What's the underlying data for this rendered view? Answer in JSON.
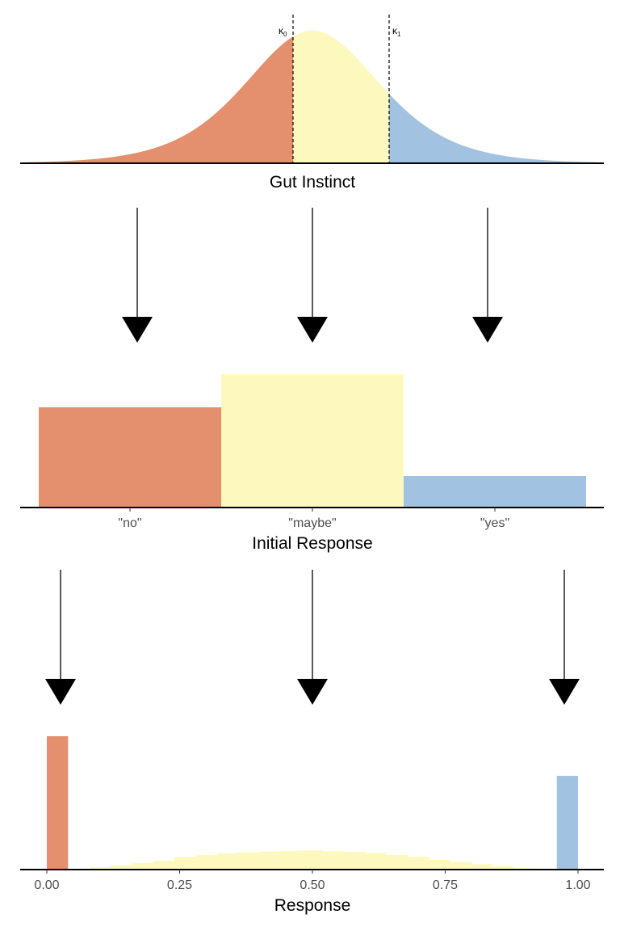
{
  "colors": {
    "no": "#E48F6D",
    "maybe": "#FDF8BD",
    "yes": "#A2C2E2",
    "axis": "#000000",
    "tick_text": "#4d4d4d"
  },
  "gut_instinct": {
    "xlabel": "Gut Instinct",
    "cutpoints": [
      {
        "name": "κ",
        "sub": "0"
      },
      {
        "name": "κ",
        "sub": "1"
      }
    ]
  },
  "initial_response": {
    "xlabel": "Initial Response",
    "categories": [
      "\"no\"",
      "\"maybe\"",
      "\"yes\""
    ]
  },
  "response": {
    "xlabel": "Response",
    "ticks": [
      "0.00",
      "0.25",
      "0.50",
      "0.75",
      "1.00"
    ]
  },
  "chart_data": [
    {
      "type": "area",
      "description_of": "density of gut instinct split at two cutpoints",
      "xlabel": "Gut Instinct",
      "regions": [
        "no",
        "maybe",
        "yes"
      ]
    },
    {
      "type": "bar",
      "xlabel": "Initial Response",
      "categories": [
        "\"no\"",
        "\"maybe\"",
        "\"yes\""
      ],
      "values": [
        0.37,
        0.46,
        0.13
      ]
    },
    {
      "type": "bar",
      "xlabel": "Response",
      "xlim": [
        0,
        1
      ],
      "ticks": [
        0.0,
        0.25,
        0.5,
        0.75,
        1.0
      ],
      "series": [
        {
          "name": "no",
          "bins": [
            [
              0.0,
              0.04,
              0.37
            ]
          ]
        },
        {
          "name": "yes",
          "bins": [
            [
              0.96,
              1.0,
              0.26
            ]
          ]
        },
        {
          "name": "maybe",
          "bins": [
            [
              0.08,
              0.12,
              0.006
            ],
            [
              0.12,
              0.16,
              0.012
            ],
            [
              0.16,
              0.2,
              0.018
            ],
            [
              0.2,
              0.24,
              0.024
            ],
            [
              0.24,
              0.28,
              0.035
            ],
            [
              0.28,
              0.32,
              0.04
            ],
            [
              0.32,
              0.36,
              0.045
            ],
            [
              0.36,
              0.4,
              0.048
            ],
            [
              0.4,
              0.44,
              0.05
            ],
            [
              0.44,
              0.48,
              0.052
            ],
            [
              0.48,
              0.52,
              0.053
            ],
            [
              0.52,
              0.56,
              0.051
            ],
            [
              0.56,
              0.6,
              0.049
            ],
            [
              0.6,
              0.64,
              0.046
            ],
            [
              0.64,
              0.68,
              0.04
            ],
            [
              0.68,
              0.72,
              0.035
            ],
            [
              0.72,
              0.76,
              0.027
            ],
            [
              0.76,
              0.8,
              0.021
            ],
            [
              0.8,
              0.84,
              0.015
            ],
            [
              0.84,
              0.88,
              0.009
            ],
            [
              0.88,
              0.92,
              0.004
            ]
          ]
        }
      ]
    }
  ]
}
